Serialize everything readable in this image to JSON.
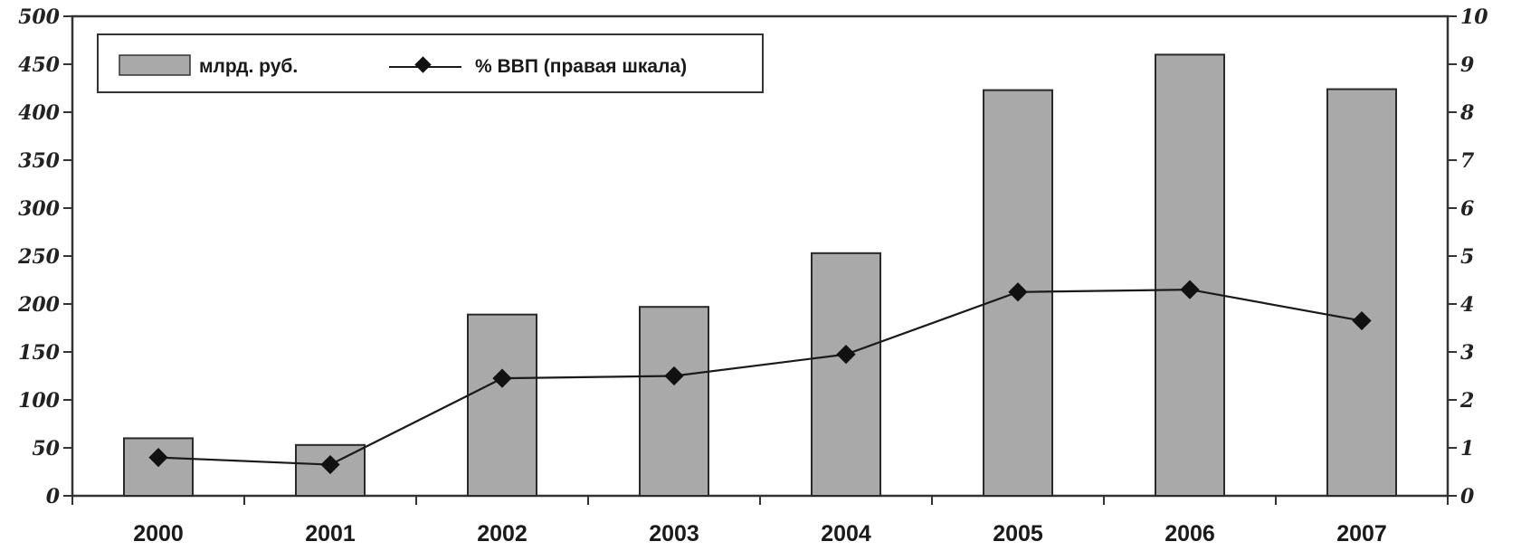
{
  "chart_data": {
    "type": "bar",
    "categories": [
      "2000",
      "2001",
      "2002",
      "2003",
      "2004",
      "2005",
      "2006",
      "2007"
    ],
    "series": [
      {
        "name": "млрд. руб.",
        "type": "bar",
        "axis": "left",
        "values": [
          60,
          53,
          189,
          197,
          253,
          423,
          460,
          424
        ],
        "color": "#a9a9a9"
      },
      {
        "name": "% ВВП (правая шкала)",
        "type": "line",
        "axis": "right",
        "values": [
          0.8,
          0.65,
          2.45,
          2.5,
          2.95,
          4.25,
          4.3,
          3.65
        ],
        "color": "#1a1a1a"
      }
    ],
    "ylim_left": [
      0,
      500
    ],
    "ylim_right": [
      0,
      10
    ],
    "yticks_left": [
      "0",
      "50",
      "100",
      "150",
      "200",
      "250",
      "300",
      "350",
      "400",
      "450",
      "500"
    ],
    "yticks_right": [
      "0",
      "1",
      "2",
      "3",
      "4",
      "5",
      "6",
      "7",
      "8",
      "9",
      "10"
    ],
    "legend_position": "top-left",
    "grid": false,
    "title": "",
    "xlabel": "",
    "ylabel": ""
  }
}
